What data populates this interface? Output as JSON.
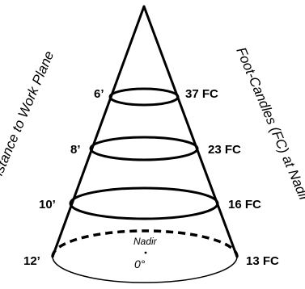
{
  "distance_axis_label": "Distance to Work Plane",
  "fc_axis_label": "Foot-Candles (FC) at Nadir",
  "levels": [
    {
      "distance": "6’",
      "footcandles": "37 FC"
    },
    {
      "distance": "8’",
      "footcandles": "23 FC"
    },
    {
      "distance": "10’",
      "footcandles": "16 FC"
    },
    {
      "distance": "12’",
      "footcandles": "13 FC"
    }
  ],
  "nadir_label": "Nadir",
  "nadir_angle": "0°"
}
